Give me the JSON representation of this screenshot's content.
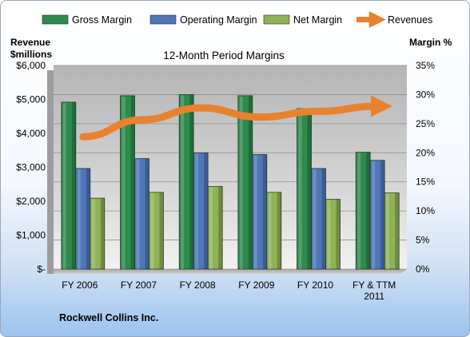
{
  "chart_data": {
    "type": "bar",
    "title": "12-Month Period Margins",
    "left_axis_label_line1": "Revenue",
    "left_axis_label_line2": "$millions",
    "right_axis_label": "Margin %",
    "left_ylim": [
      0,
      6000
    ],
    "right_ylim": [
      0,
      35
    ],
    "left_ticks": [
      "$-",
      "$1,000",
      "$2,000",
      "$3,000",
      "$4,000",
      "$5,000",
      "$6,000"
    ],
    "right_ticks": [
      "0%",
      "5%",
      "10%",
      "15%",
      "20%",
      "25%",
      "30%",
      "35%"
    ],
    "categories": [
      [
        "FY 2006"
      ],
      [
        "FY 2007"
      ],
      [
        "FY 2008"
      ],
      [
        "FY 2009"
      ],
      [
        "FY 2010"
      ],
      [
        "FY & TTM",
        "2011"
      ]
    ],
    "series": [
      {
        "name": "Gross Margin",
        "kind": "bar",
        "axis": "right",
        "color": "#2e8b4e",
        "values": [
          28.7,
          29.8,
          30.0,
          29.8,
          27.6,
          20.1
        ]
      },
      {
        "name": "Operating Margin",
        "kind": "bar",
        "axis": "right",
        "color": "#4f77b8",
        "values": [
          17.3,
          19.0,
          20.0,
          19.7,
          17.3,
          18.7
        ]
      },
      {
        "name": "Net Margin",
        "kind": "bar",
        "axis": "right",
        "color": "#8fb257",
        "values": [
          12.2,
          13.2,
          14.2,
          13.2,
          12.0,
          13.1
        ]
      },
      {
        "name": "Revenues",
        "kind": "line",
        "axis": "left",
        "color": "#e8822e",
        "values": [
          3900,
          4400,
          4750,
          4480,
          4650,
          4800
        ]
      }
    ],
    "grid": true,
    "legend_position": "top"
  },
  "footer": {
    "company": "Rockwell Collins Inc."
  }
}
